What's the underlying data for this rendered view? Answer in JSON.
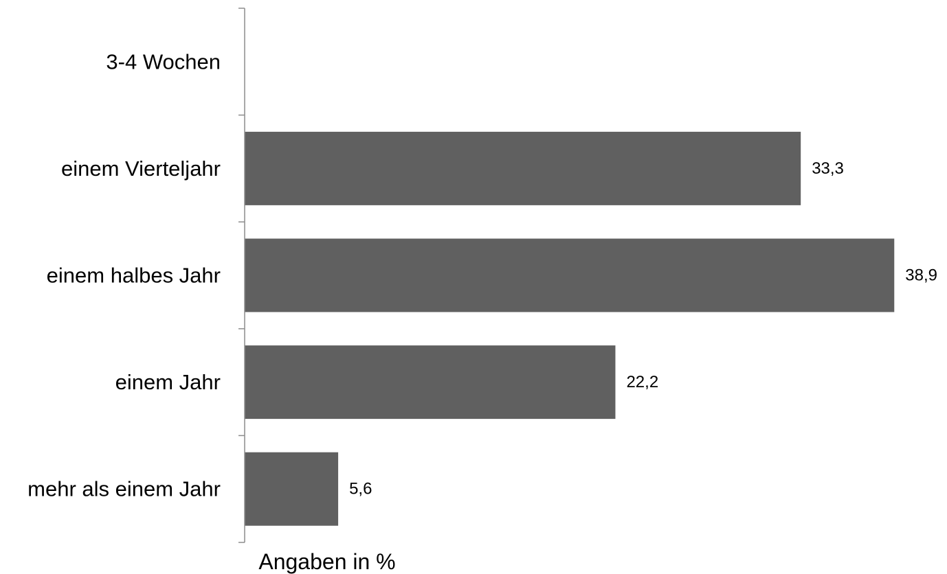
{
  "chart_data": {
    "type": "bar",
    "orientation": "horizontal",
    "categories": [
      "3-4 Wochen",
      "einem Vierteljahr",
      "einem halbes Jahr",
      "einem Jahr",
      "mehr als einem Jahr"
    ],
    "values": [
      null,
      33.3,
      38.9,
      22.2,
      5.6
    ],
    "value_labels": [
      "",
      "33,3",
      "38,9",
      "22,2",
      "5,6"
    ],
    "xlabel": "Angaben in %",
    "xlim": [
      0,
      40
    ],
    "grid": false,
    "legend": "none",
    "bar_color": "#606060"
  }
}
